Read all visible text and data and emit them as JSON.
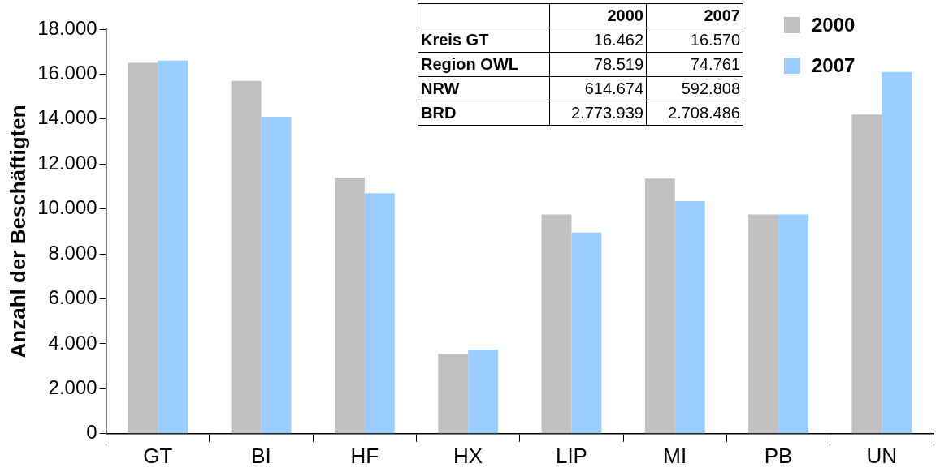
{
  "chart_data": {
    "type": "bar",
    "ylabel": "Anzahl der Beschäftigten",
    "categories": [
      "GT",
      "BI",
      "HF",
      "HX",
      "LIP",
      "MI",
      "PB",
      "UN"
    ],
    "series": [
      {
        "name": "2000",
        "color": "#c0c0c0",
        "values": [
          16500,
          15700,
          11400,
          3550,
          9750,
          11350,
          9750,
          14200
        ]
      },
      {
        "name": "2007",
        "color": "#99ccff",
        "values": [
          16600,
          14100,
          10700,
          3750,
          8950,
          10350,
          9750,
          16100
        ]
      }
    ],
    "ylim": [
      0,
      18000
    ],
    "yticks": [
      {
        "value": 0,
        "label": "0"
      },
      {
        "value": 2000,
        "label": "2.000"
      },
      {
        "value": 4000,
        "label": "4.000"
      },
      {
        "value": 6000,
        "label": "6.000"
      },
      {
        "value": 8000,
        "label": "8.000"
      },
      {
        "value": 10000,
        "label": "10.000"
      },
      {
        "value": 12000,
        "label": "12.000"
      },
      {
        "value": 14000,
        "label": "14.000"
      },
      {
        "value": 16000,
        "label": "16.000"
      },
      {
        "value": 18000,
        "label": "18.000"
      }
    ],
    "grid": false,
    "legend": "top right",
    "annotations": [
      "2000",
      "2007",
      "Kreis GT",
      "16.462",
      "16.570",
      "Region OWL",
      "78.519",
      "74.761",
      "NRW",
      "614.674",
      "592.808",
      "BRD",
      "2.773.939",
      "2.708.486"
    ]
  }
}
